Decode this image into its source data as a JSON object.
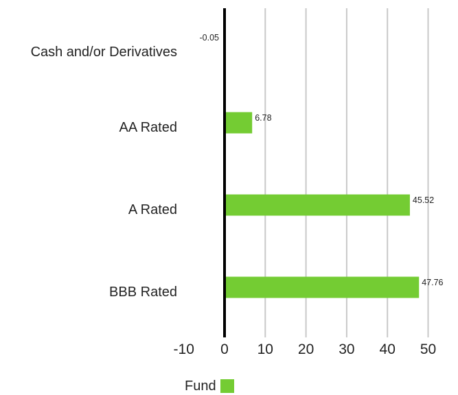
{
  "chart_data": {
    "type": "bar",
    "orientation": "horizontal",
    "categories": [
      "Cash and/or Derivatives",
      "AA Rated",
      "A Rated",
      "BBB Rated"
    ],
    "series": [
      {
        "name": "Fund",
        "values": [
          -0.05,
          6.78,
          45.52,
          47.76
        ],
        "color": "#74cc33"
      }
    ],
    "value_labels": [
      "-0.05",
      "6.78",
      "45.52",
      "47.76"
    ],
    "xlim": [
      -10,
      50
    ],
    "xticks": [
      -10,
      0,
      10,
      20,
      30,
      40,
      50
    ],
    "xtick_labels": [
      "-10",
      "0",
      "10",
      "20",
      "30",
      "40",
      "50"
    ],
    "grid": true,
    "legend": "bottom",
    "title": "",
    "xlabel": "",
    "ylabel": ""
  },
  "colors": {
    "bar": "#74cc33",
    "grid": "#c8c8c8",
    "zero_axis": "#000000"
  }
}
